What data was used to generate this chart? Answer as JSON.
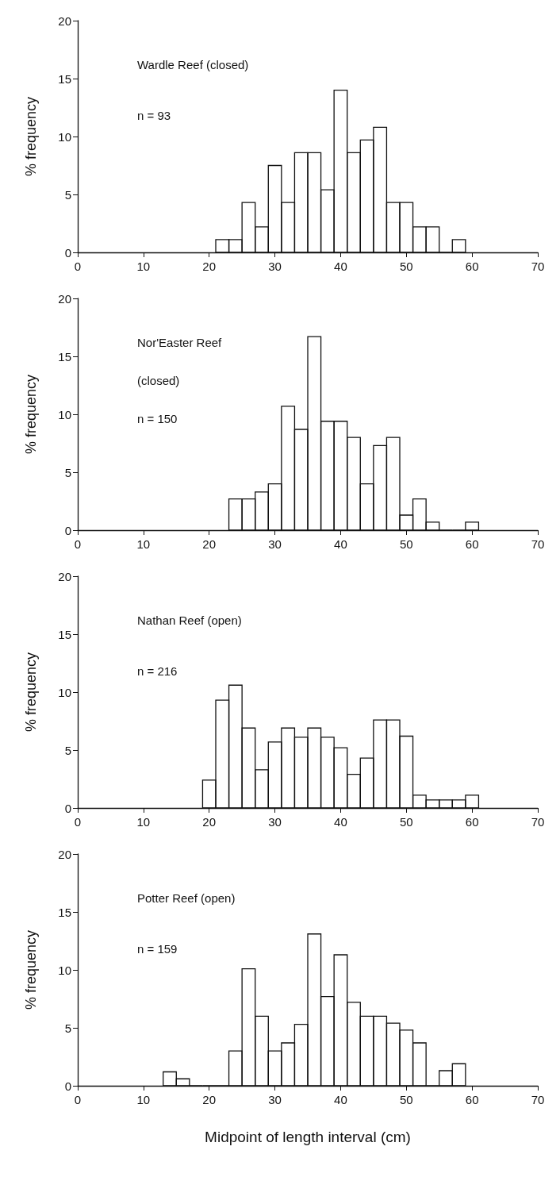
{
  "chart_data": [
    {
      "type": "histogram",
      "ylabel": "% frequency",
      "annotations": [
        "Wardle Reef (closed)",
        "n = 93"
      ],
      "bins": [
        21,
        23,
        25,
        27,
        29,
        31,
        33,
        35,
        37,
        39,
        41,
        43,
        45,
        47,
        49,
        51,
        53,
        55,
        57,
        59
      ],
      "values": [
        1.1,
        1.1,
        4.3,
        2.2,
        7.5,
        4.3,
        8.6,
        8.6,
        5.4,
        14,
        8.6,
        9.7,
        10.8,
        4.3,
        4.3,
        2.2,
        2.2,
        0,
        1.1
      ],
      "xlim": [
        0,
        70
      ],
      "xticks": [
        0,
        10,
        20,
        30,
        40,
        50,
        60,
        70
      ],
      "ylim": [
        0,
        20
      ],
      "yticks": [
        0,
        5,
        10,
        15,
        20
      ]
    },
    {
      "type": "histogram",
      "ylabel": "% frequency",
      "annotations": [
        "Nor'Easter Reef",
        "(closed)",
        "n = 150"
      ],
      "bins": [
        23,
        25,
        27,
        29,
        31,
        33,
        35,
        37,
        39,
        41,
        43,
        45,
        47,
        49,
        51,
        53,
        55,
        57,
        59,
        61
      ],
      "values": [
        2.7,
        2.7,
        3.3,
        4.0,
        10.7,
        8.7,
        16.7,
        9.4,
        9.4,
        8.0,
        4.0,
        7.3,
        8.0,
        1.3,
        2.7,
        0.7,
        0,
        0,
        0.7
      ],
      "xlim": [
        0,
        70
      ],
      "xticks": [
        0,
        10,
        20,
        30,
        40,
        50,
        60,
        70
      ],
      "ylim": [
        0,
        20
      ],
      "yticks": [
        0,
        5,
        10,
        15,
        20
      ]
    },
    {
      "type": "histogram",
      "ylabel": "% frequency",
      "annotations": [
        "Nathan Reef (open)",
        "n = 216"
      ],
      "bins": [
        19,
        21,
        23,
        25,
        27,
        29,
        31,
        33,
        35,
        37,
        39,
        41,
        43,
        45,
        47,
        49,
        51,
        53,
        55,
        57,
        59,
        61
      ],
      "values": [
        2.4,
        9.3,
        10.6,
        6.9,
        3.3,
        5.7,
        6.9,
        6.1,
        6.9,
        6.1,
        5.2,
        2.9,
        4.3,
        7.6,
        7.6,
        6.2,
        1.1,
        0.7,
        0.7,
        0.7,
        1.1
      ],
      "xlim": [
        0,
        70
      ],
      "xticks": [
        0,
        10,
        20,
        30,
        40,
        50,
        60,
        70
      ],
      "ylim": [
        0,
        20
      ],
      "yticks": [
        0,
        5,
        10,
        15,
        20
      ]
    },
    {
      "type": "histogram",
      "ylabel": "% frequency",
      "xlabel": "Midpoint of length interval (cm)",
      "annotations": [
        "Potter Reef (open)",
        "n = 159"
      ],
      "bins": [
        13,
        15,
        17,
        19,
        21,
        23,
        25,
        27,
        29,
        31,
        33,
        35,
        37,
        39,
        41,
        43,
        45,
        47,
        49,
        51,
        53,
        55,
        57,
        59
      ],
      "values": [
        1.2,
        0.6,
        0,
        0,
        0,
        3.0,
        10.1,
        6.0,
        3.0,
        3.7,
        5.3,
        13.1,
        7.7,
        11.3,
        7.2,
        6.0,
        6.0,
        5.4,
        4.8,
        3.7,
        0,
        1.3,
        1.9
      ],
      "xlim": [
        0,
        70
      ],
      "xticks": [
        0,
        10,
        20,
        30,
        40,
        50,
        60,
        70
      ],
      "ylim": [
        0,
        20
      ],
      "yticks": [
        0,
        5,
        10,
        15,
        20
      ]
    }
  ]
}
